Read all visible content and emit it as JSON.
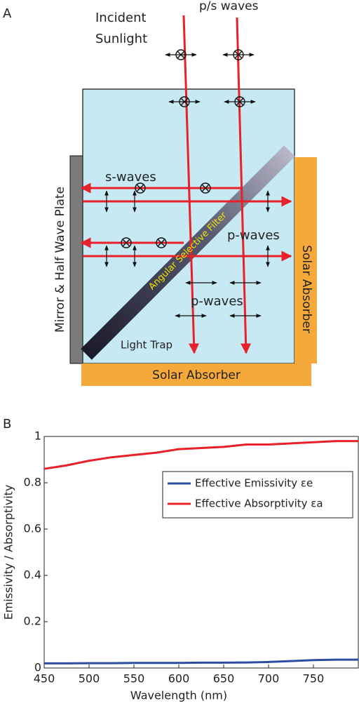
{
  "diagram": {
    "panel_label": "A",
    "incident": [
      "Incident",
      "Sunlight"
    ],
    "ps_waves": "p/s waves",
    "s_waves": "s-waves",
    "p_waves_upper": "p-waves",
    "p_waves_lower": "p-waves",
    "filter": "Angular Selective Filter",
    "mirror": "Mirror & Half Wave Plate",
    "absorber_right": "Solar Absorber",
    "absorber_bottom": "Solar Absorber",
    "light_trap": "Light Trap"
  },
  "chart_data": {
    "type": "line",
    "panel_label": "B",
    "xlabel": "Wavelength (nm)",
    "ylabel": "Emissivity / Absorptivity",
    "x": [
      450,
      475,
      500,
      525,
      550,
      575,
      600,
      625,
      650,
      675,
      700,
      725,
      750,
      775,
      800
    ],
    "series": [
      {
        "name": "Effective Emissivity εe",
        "color": "#2b4ea2",
        "values": [
          0.02,
          0.02,
          0.021,
          0.021,
          0.022,
          0.022,
          0.022,
          0.023,
          0.023,
          0.024,
          0.026,
          0.03,
          0.034,
          0.036,
          0.036
        ]
      },
      {
        "name": "Effective Absorptivity εa",
        "color": "#e8202a",
        "values": [
          0.86,
          0.875,
          0.895,
          0.91,
          0.92,
          0.93,
          0.945,
          0.95,
          0.955,
          0.965,
          0.965,
          0.97,
          0.975,
          0.98,
          0.98
        ]
      }
    ],
    "xlim": [
      450,
      800
    ],
    "xticks": [
      450,
      500,
      550,
      600,
      650,
      700,
      750
    ],
    "ylim": [
      0,
      1
    ],
    "yticks": [
      0,
      0.2,
      0.4,
      0.6,
      0.8,
      1
    ],
    "legend": "upper right"
  }
}
